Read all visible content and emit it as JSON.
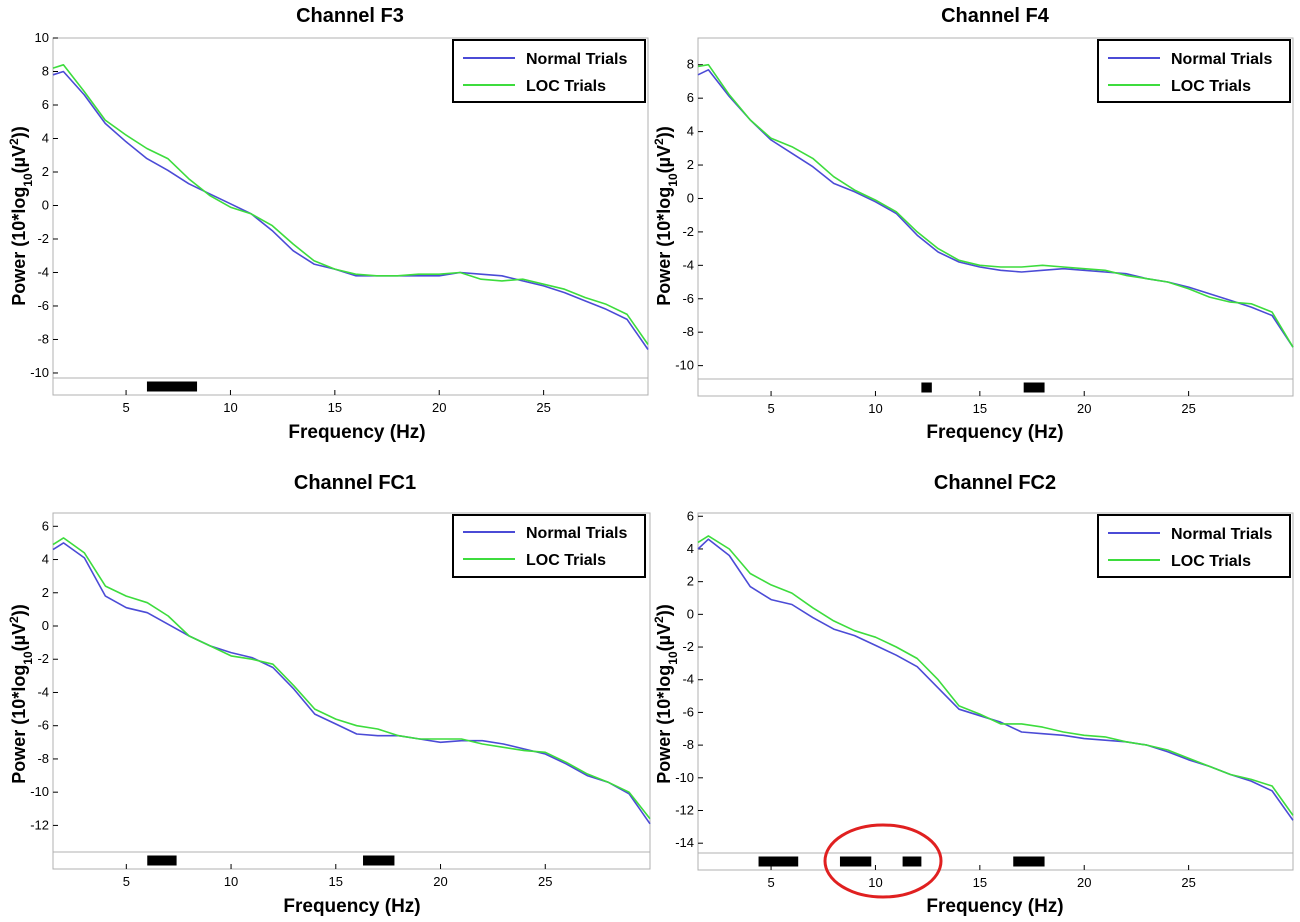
{
  "colors": {
    "normal": "#4b4bd6",
    "loc": "#3ddc3d",
    "marker": "#000000",
    "highlight": "#e02020"
  },
  "chart_data": [
    {
      "type": "line",
      "title": "Channel F3",
      "xlabel": "Frequency (Hz)",
      "ylabel_main": "Power (10*log",
      "ylabel_sub": "10",
      "ylabel_post": "(µV",
      "ylabel_sup": "2",
      "ylabel_end": "))",
      "xlim": [
        1.5,
        30
      ],
      "ylim": [
        -10.3,
        10
      ],
      "xticks": [
        5,
        10,
        15,
        20,
        25
      ],
      "xtick_labels": [
        "5",
        "10",
        "15",
        "20",
        "25"
      ],
      "yticks": [
        10,
        8,
        6,
        4,
        2,
        0,
        -2,
        -4,
        -6,
        -8,
        -10
      ],
      "ytick_labels": [
        "10",
        "8",
        "6",
        "4",
        "2",
        "0",
        "-2",
        "-4",
        "-6",
        "-8",
        "-10"
      ],
      "legend": [
        "Normal Trials",
        "LOC Trials"
      ],
      "significant_bands": [
        [
          6.0,
          8.4
        ]
      ],
      "highlight": null,
      "series": [
        {
          "name": "Normal Trials",
          "x": [
            1.5,
            2,
            3,
            4,
            5,
            6,
            7,
            8,
            9,
            10,
            11,
            12,
            13,
            14,
            15,
            16,
            17,
            18,
            19,
            20,
            21,
            22,
            23,
            24,
            25,
            26,
            27,
            28,
            29,
            30
          ],
          "values": [
            7.8,
            8.0,
            6.6,
            4.9,
            3.8,
            2.8,
            2.1,
            1.3,
            0.7,
            0.1,
            -0.5,
            -1.5,
            -2.7,
            -3.5,
            -3.8,
            -4.2,
            -4.2,
            -4.2,
            -4.2,
            -4.2,
            -4.0,
            -4.1,
            -4.2,
            -4.5,
            -4.8,
            -5.2,
            -5.7,
            -6.2,
            -6.8,
            -8.6
          ]
        },
        {
          "name": "LOC Trials",
          "x": [
            1.5,
            2,
            3,
            4,
            5,
            6,
            7,
            8,
            9,
            10,
            11,
            12,
            13,
            14,
            15,
            16,
            17,
            18,
            19,
            20,
            21,
            22,
            23,
            24,
            25,
            26,
            27,
            28,
            29,
            30
          ],
          "values": [
            8.2,
            8.4,
            6.8,
            5.1,
            4.2,
            3.4,
            2.8,
            1.6,
            0.6,
            -0.1,
            -0.5,
            -1.2,
            -2.3,
            -3.3,
            -3.8,
            -4.1,
            -4.2,
            -4.2,
            -4.1,
            -4.1,
            -4.0,
            -4.4,
            -4.5,
            -4.4,
            -4.7,
            -5.0,
            -5.5,
            -5.9,
            -6.5,
            -8.3
          ]
        }
      ]
    },
    {
      "type": "line",
      "title": "Channel F4",
      "xlabel": "Frequency (Hz)",
      "ylabel_main": "Power (10*log",
      "ylabel_sub": "10",
      "ylabel_post": "(µV",
      "ylabel_sup": "2",
      "ylabel_end": "))",
      "xlim": [
        1.5,
        30
      ],
      "ylim": [
        -10.8,
        9.6
      ],
      "xticks": [
        5,
        10,
        15,
        20,
        25
      ],
      "xtick_labels": [
        "5",
        "10",
        "15",
        "20",
        "25"
      ],
      "yticks": [
        8,
        6,
        4,
        2,
        0,
        -2,
        -4,
        -6,
        -8,
        -10
      ],
      "ytick_labels": [
        "8",
        "6",
        "4",
        "2",
        "0",
        "-2",
        "-4",
        "-6",
        "-8",
        "-10"
      ],
      "legend": [
        "Normal Trials",
        "LOC Trials"
      ],
      "significant_bands": [
        [
          12.2,
          12.7
        ],
        [
          17.1,
          18.1
        ]
      ],
      "highlight": null,
      "series": [
        {
          "name": "Normal Trials",
          "x": [
            1.5,
            2,
            3,
            4,
            5,
            6,
            7,
            8,
            9,
            10,
            11,
            12,
            13,
            14,
            15,
            16,
            17,
            18,
            19,
            20,
            21,
            22,
            23,
            24,
            25,
            26,
            27,
            28,
            29,
            30
          ],
          "values": [
            7.4,
            7.7,
            6.1,
            4.7,
            3.5,
            2.7,
            1.9,
            0.9,
            0.4,
            -0.2,
            -0.9,
            -2.2,
            -3.2,
            -3.8,
            -4.1,
            -4.3,
            -4.4,
            -4.3,
            -4.2,
            -4.3,
            -4.4,
            -4.5,
            -4.8,
            -5.0,
            -5.3,
            -5.7,
            -6.1,
            -6.5,
            -7.0,
            -8.9
          ]
        },
        {
          "name": "LOC Trials",
          "x": [
            1.5,
            2,
            3,
            4,
            5,
            6,
            7,
            8,
            9,
            10,
            11,
            12,
            13,
            14,
            15,
            16,
            17,
            18,
            19,
            20,
            21,
            22,
            23,
            24,
            25,
            26,
            27,
            28,
            29,
            30
          ],
          "values": [
            7.9,
            8.0,
            6.2,
            4.7,
            3.6,
            3.1,
            2.4,
            1.3,
            0.5,
            -0.1,
            -0.8,
            -2.0,
            -3.0,
            -3.7,
            -4.0,
            -4.1,
            -4.1,
            -4.0,
            -4.1,
            -4.2,
            -4.3,
            -4.6,
            -4.8,
            -5.0,
            -5.4,
            -5.9,
            -6.2,
            -6.3,
            -6.8,
            -8.9
          ]
        }
      ]
    },
    {
      "type": "line",
      "title": "Channel FC1",
      "xlabel": "Frequency (Hz)",
      "ylabel_main": "Power (10*log",
      "ylabel_sub": "10",
      "ylabel_post": "(µV",
      "ylabel_sup": "2",
      "ylabel_end": "))",
      "xlim": [
        1.5,
        30
      ],
      "ylim": [
        -13.6,
        6.8
      ],
      "xticks": [
        5,
        10,
        15,
        20,
        25
      ],
      "xtick_labels": [
        "5",
        "10",
        "15",
        "20",
        "25"
      ],
      "yticks": [
        6,
        4,
        2,
        0,
        -2,
        -4,
        -6,
        -8,
        -10,
        -12
      ],
      "ytick_labels": [
        "6",
        "4",
        "2",
        "0",
        "-2",
        "-4",
        "-6",
        "-8",
        "-10",
        "-12"
      ],
      "legend": [
        "Normal Trials",
        "LOC Trials"
      ],
      "significant_bands": [
        [
          6.0,
          7.4
        ],
        [
          16.3,
          17.8
        ]
      ],
      "highlight": null,
      "series": [
        {
          "name": "Normal Trials",
          "x": [
            1.5,
            2,
            3,
            4,
            5,
            6,
            7,
            8,
            9,
            10,
            11,
            12,
            13,
            14,
            15,
            16,
            17,
            18,
            19,
            20,
            21,
            22,
            23,
            24,
            25,
            26,
            27,
            28,
            29,
            30
          ],
          "values": [
            4.6,
            5.0,
            4.1,
            1.8,
            1.1,
            0.8,
            0.1,
            -0.6,
            -1.2,
            -1.6,
            -1.9,
            -2.5,
            -3.8,
            -5.3,
            -5.9,
            -6.5,
            -6.6,
            -6.6,
            -6.8,
            -7.0,
            -6.9,
            -6.9,
            -7.1,
            -7.4,
            -7.7,
            -8.3,
            -9.0,
            -9.4,
            -10.1,
            -11.9
          ]
        },
        {
          "name": "LOC Trials",
          "x": [
            1.5,
            2,
            3,
            4,
            5,
            6,
            7,
            8,
            9,
            10,
            11,
            12,
            13,
            14,
            15,
            16,
            17,
            18,
            19,
            20,
            21,
            22,
            23,
            24,
            25,
            26,
            27,
            28,
            29,
            30
          ],
          "values": [
            4.9,
            5.3,
            4.4,
            2.4,
            1.8,
            1.4,
            0.6,
            -0.6,
            -1.2,
            -1.8,
            -2.0,
            -2.3,
            -3.6,
            -5.0,
            -5.6,
            -6.0,
            -6.2,
            -6.6,
            -6.8,
            -6.8,
            -6.8,
            -7.1,
            -7.3,
            -7.5,
            -7.6,
            -8.2,
            -8.9,
            -9.4,
            -10.0,
            -11.6
          ]
        }
      ]
    },
    {
      "type": "line",
      "title": "Channel FC2",
      "xlabel": "Frequency (Hz)",
      "ylabel_main": "Power (10*log",
      "ylabel_sub": "10",
      "ylabel_post": "(µV",
      "ylabel_sup": "2",
      "ylabel_end": "))",
      "xlim": [
        1.5,
        30
      ],
      "ylim": [
        -14.6,
        6.2
      ],
      "xticks": [
        5,
        10,
        15,
        20,
        25
      ],
      "xtick_labels": [
        "5",
        "10",
        "15",
        "20",
        "25"
      ],
      "yticks": [
        6,
        4,
        2,
        0,
        -2,
        -4,
        -6,
        -8,
        -10,
        -12,
        -14
      ],
      "ytick_labels": [
        "6",
        "4",
        "2",
        "0",
        "-2",
        "-4",
        "-6",
        "-8",
        "-10",
        "-12",
        "-14"
      ],
      "legend": [
        "Normal Trials",
        "LOC Trials"
      ],
      "significant_bands": [
        [
          4.4,
          6.3
        ],
        [
          8.3,
          9.8
        ],
        [
          11.3,
          12.2
        ],
        [
          16.6,
          18.1
        ]
      ],
      "highlight": {
        "shape": "ellipse",
        "center_hz": 10.4,
        "radius_hz": 2.8
      },
      "series": [
        {
          "name": "Normal Trials",
          "x": [
            1.5,
            2,
            3,
            4,
            5,
            6,
            7,
            8,
            9,
            10,
            11,
            12,
            13,
            14,
            15,
            16,
            17,
            18,
            19,
            20,
            21,
            22,
            23,
            24,
            25,
            26,
            27,
            28,
            29,
            30
          ],
          "values": [
            4.0,
            4.6,
            3.6,
            1.7,
            0.9,
            0.6,
            -0.2,
            -0.9,
            -1.3,
            -1.9,
            -2.5,
            -3.2,
            -4.5,
            -5.8,
            -6.2,
            -6.6,
            -7.2,
            -7.3,
            -7.4,
            -7.6,
            -7.7,
            -7.8,
            -8.0,
            -8.4,
            -8.9,
            -9.3,
            -9.8,
            -10.2,
            -10.8,
            -12.6
          ]
        },
        {
          "name": "LOC Trials",
          "x": [
            1.5,
            2,
            3,
            4,
            5,
            6,
            7,
            8,
            9,
            10,
            11,
            12,
            13,
            14,
            15,
            16,
            17,
            18,
            19,
            20,
            21,
            22,
            23,
            24,
            25,
            26,
            27,
            28,
            29,
            30
          ],
          "values": [
            4.4,
            4.8,
            4.0,
            2.5,
            1.8,
            1.3,
            0.4,
            -0.4,
            -1.0,
            -1.4,
            -2.0,
            -2.7,
            -4.0,
            -5.6,
            -6.1,
            -6.7,
            -6.7,
            -6.9,
            -7.2,
            -7.4,
            -7.5,
            -7.8,
            -8.0,
            -8.3,
            -8.8,
            -9.3,
            -9.8,
            -10.1,
            -10.5,
            -12.3
          ]
        }
      ]
    }
  ]
}
